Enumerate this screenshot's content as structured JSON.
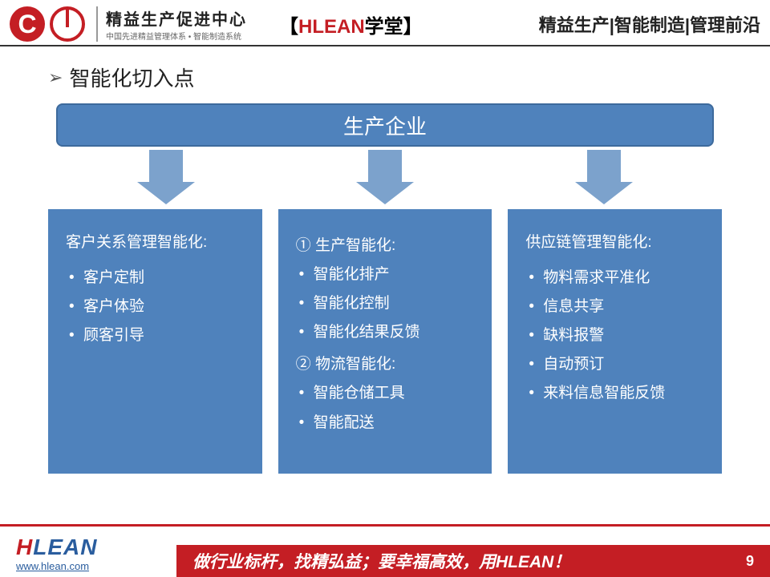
{
  "header": {
    "logo_title": "精益生产促进中心",
    "logo_sub": "中国先进精益管理体系 • 智能制造系统",
    "center_prefix": "【",
    "center_brand": "HLEAN",
    "center_suffix1": "学堂",
    "center_suffix2": "】",
    "right": "精益生产|智能制造|管理前沿"
  },
  "section": {
    "chevron": "➢",
    "title": "智能化切入点"
  },
  "diagram": {
    "top_box": "生产企业",
    "arrow_color": "#7ca2cc",
    "box_bg": "#4f82bc",
    "box_border": "#3d6a9c",
    "columns": [
      {
        "title": "客户关系管理智能化:",
        "items": [
          "客户定制",
          "客户体验",
          "顾客引导"
        ]
      },
      {
        "groups": [
          {
            "heading": "①  生产智能化:",
            "items": [
              "智能化排产",
              "智能化控制",
              "智能化结果反馈"
            ]
          },
          {
            "heading": "②  物流智能化:",
            "items": [
              "智能仓储工具",
              "智能配送"
            ]
          }
        ]
      },
      {
        "title": "供应链管理智能化:",
        "items": [
          "物料需求平准化",
          "信息共享",
          "缺料报警",
          "自动预订",
          "来料信息智能反馈"
        ]
      }
    ]
  },
  "footer": {
    "brand_h": "H",
    "brand_rest": "LEAN",
    "url": "www.hlean.com",
    "slogan": "做行业标杆，找精弘益；要幸福高效，用HLEAN！",
    "page": "9"
  },
  "colors": {
    "red": "#c41e24",
    "blue": "#4f82bc",
    "blue_light": "#7ca2cc",
    "text": "#222222",
    "white": "#ffffff"
  }
}
